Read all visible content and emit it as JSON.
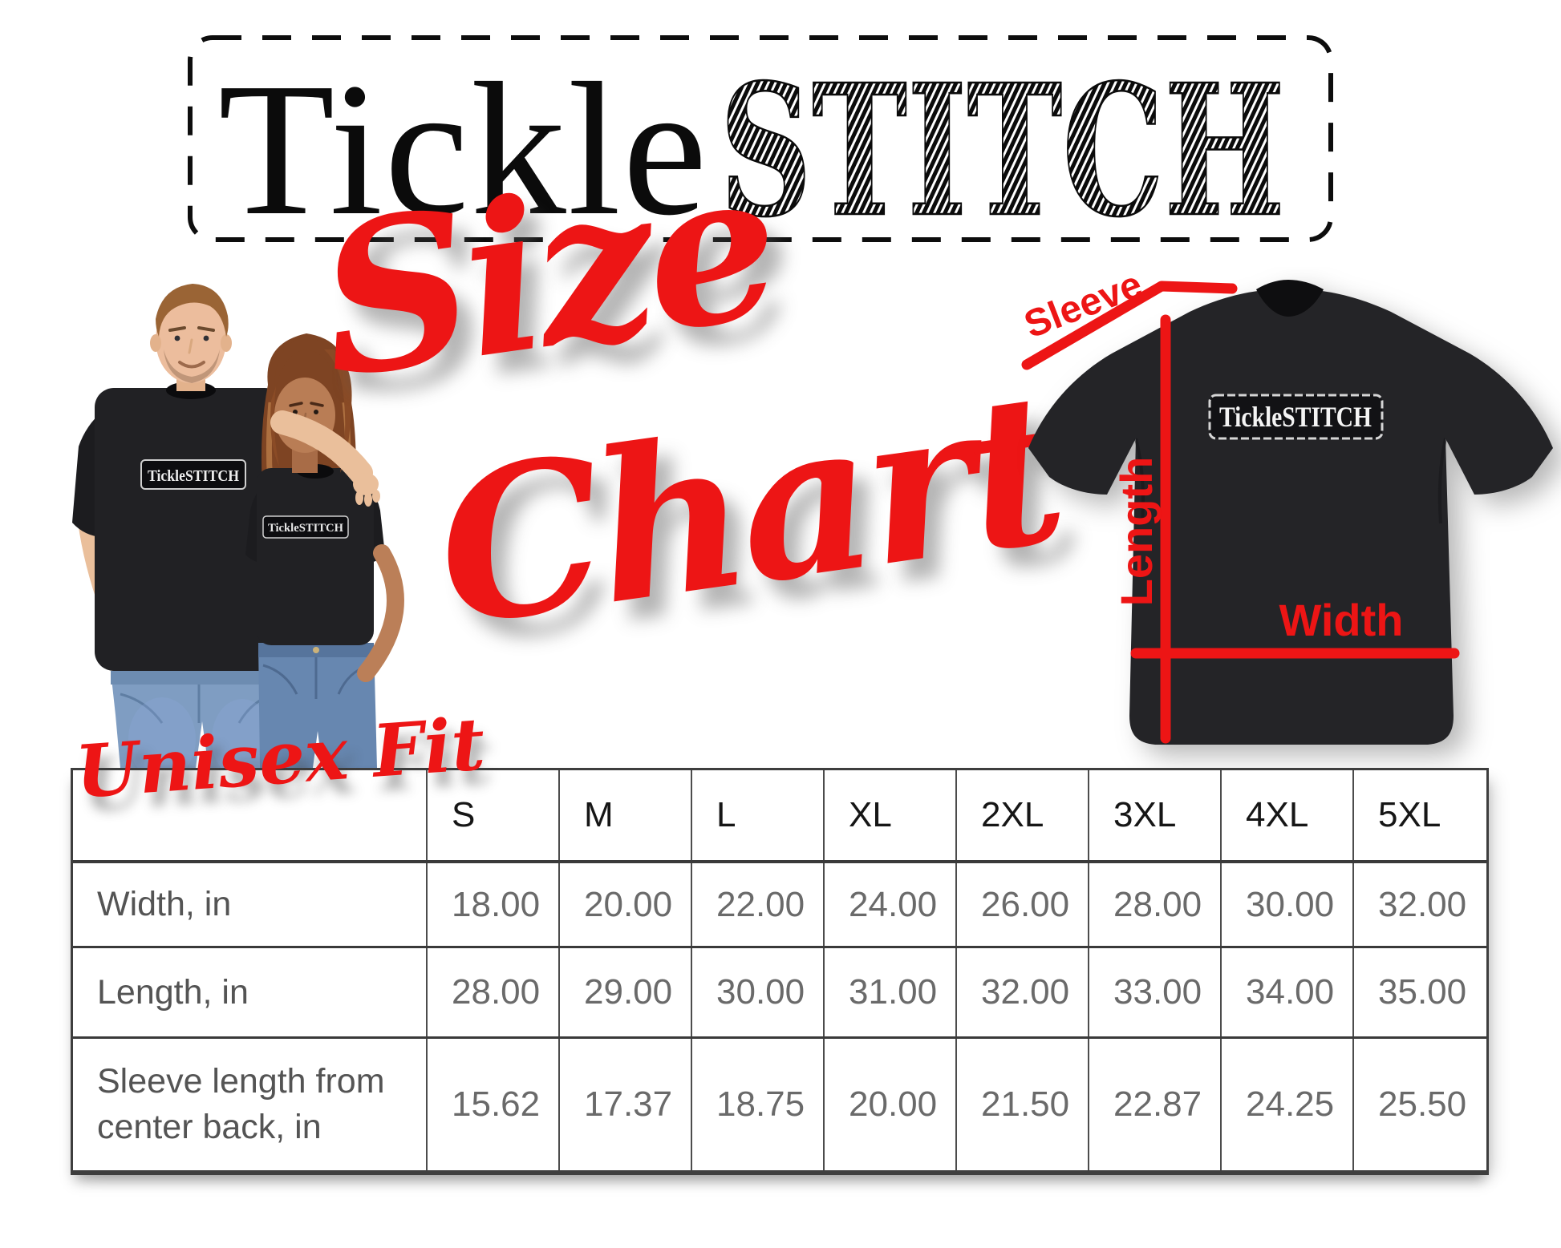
{
  "brand": {
    "logo_part1": "Tickle",
    "logo_part2": "STITCH"
  },
  "title": {
    "line1": "Size",
    "line2": "Chart"
  },
  "models": {
    "left_shirt_label": "TickleSTITCH",
    "right_shirt_label": "TickleSTITCH"
  },
  "diagram": {
    "shirt_label": "TickleSTITCH",
    "sleeve_label": "Sleeve",
    "length_label": "Length",
    "width_label": "Width"
  },
  "table": {
    "fit_label": "Unisex Fit",
    "sizes": [
      "S",
      "M",
      "L",
      "XL",
      "2XL",
      "3XL",
      "4XL",
      "5XL"
    ],
    "rows": [
      {
        "label": "Width, in",
        "values": [
          "18.00",
          "20.00",
          "22.00",
          "24.00",
          "26.00",
          "28.00",
          "30.00",
          "32.00"
        ]
      },
      {
        "label": "Length, in",
        "values": [
          "28.00",
          "29.00",
          "30.00",
          "31.00",
          "32.00",
          "33.00",
          "34.00",
          "35.00"
        ]
      },
      {
        "label": "Sleeve length from center back, in",
        "values": [
          "15.62",
          "17.37",
          "18.75",
          "20.00",
          "21.50",
          "22.87",
          "24.25",
          "25.50"
        ]
      }
    ]
  },
  "chart_data": {
    "type": "table",
    "title": "Size Chart — Unisex Fit",
    "columns": [
      "",
      "S",
      "M",
      "L",
      "XL",
      "2XL",
      "3XL",
      "4XL",
      "5XL"
    ],
    "rows": [
      [
        "Width, in",
        18.0,
        20.0,
        22.0,
        24.0,
        26.0,
        28.0,
        30.0,
        32.0
      ],
      [
        "Length, in",
        28.0,
        29.0,
        30.0,
        31.0,
        32.0,
        33.0,
        34.0,
        35.0
      ],
      [
        "Sleeve length from center back, in",
        15.62,
        17.37,
        18.75,
        20.0,
        21.5,
        22.87,
        24.25,
        25.5
      ]
    ]
  },
  "colors": {
    "accent_red": "#ed1515",
    "ink_black": "#0d0d0d",
    "tee_dark": "#242427",
    "table_line": "#3e3e3e",
    "value_gray": "#6a6a6a",
    "label_gray": "#545454",
    "denim_blue": "#7f9dc2"
  }
}
